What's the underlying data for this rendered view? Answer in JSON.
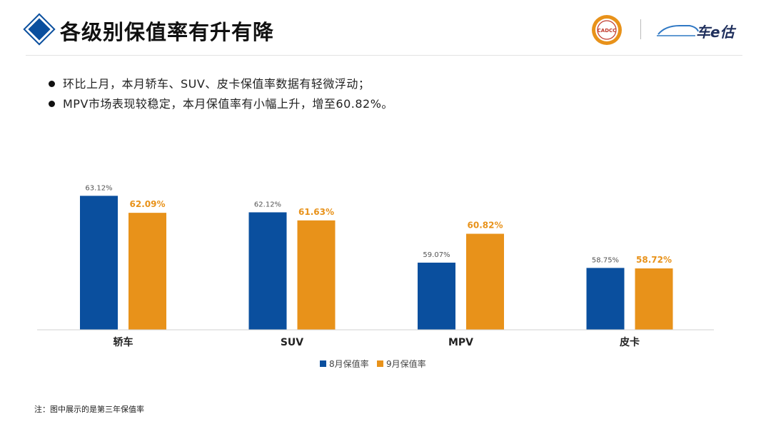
{
  "header": {
    "title": "各级别保值率有升有降",
    "seal_text": "CADCC",
    "brand_text": "车e估"
  },
  "bullets": [
    "环比上月，本月轿车、SUV、皮卡保值率数据有轻微浮动；",
    "MPV市场表现较稳定，本月保值率有小幅上升，增至60.82%。"
  ],
  "chart_data": {
    "type": "bar",
    "title": "",
    "xlabel": "",
    "ylabel": "",
    "ylim": [
      55,
      64
    ],
    "grid": false,
    "legend": "bottom-center",
    "categories": [
      "轿车",
      "SUV",
      "MPV",
      "皮卡"
    ],
    "series": [
      {
        "name": "8月保值率",
        "values": [
          63.12,
          62.12,
          59.07,
          58.75
        ],
        "labels": [
          "63.12%",
          "62.12%",
          "59.07%",
          "58.75%"
        ],
        "color": "#0a4f9e",
        "label_color": "#555555"
      },
      {
        "name": "9月保值率",
        "values": [
          62.09,
          61.63,
          60.82,
          58.72
        ],
        "labels": [
          "62.09%",
          "61.63%",
          "60.82%",
          "58.72%"
        ],
        "color": "#e8921a",
        "label_color": "#e8921a"
      }
    ]
  },
  "footnote": "注：图中展示的是第三年保值率"
}
